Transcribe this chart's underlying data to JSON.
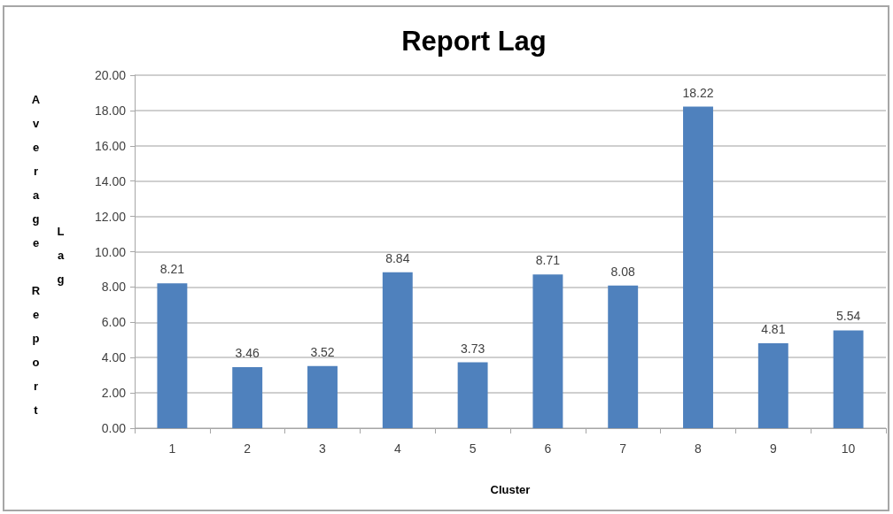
{
  "chart_data": {
    "type": "bar",
    "title": "Report Lag",
    "xlabel": "Cluster",
    "ylabel": "Average Report Lag",
    "categories": [
      "1",
      "2",
      "3",
      "4",
      "5",
      "6",
      "7",
      "8",
      "9",
      "10"
    ],
    "values": [
      8.21,
      3.46,
      3.52,
      8.84,
      3.73,
      8.71,
      8.08,
      18.22,
      4.81,
      5.54
    ],
    "color": "#4f81bd",
    "ylim": [
      0,
      20
    ],
    "yticks": [
      {
        "value": 0,
        "label": "0.00"
      },
      {
        "value": 2,
        "label": "2.00"
      },
      {
        "value": 4,
        "label": "4.00"
      },
      {
        "value": 6,
        "label": "6.00"
      },
      {
        "value": 8,
        "label": "8.00"
      },
      {
        "value": 10,
        "label": "10.00"
      },
      {
        "value": 12,
        "label": "12.00"
      },
      {
        "value": 14,
        "label": "14.00"
      },
      {
        "value": 16,
        "label": "16.00"
      },
      {
        "value": 18,
        "label": "18.00"
      },
      {
        "value": 20,
        "label": "20.00"
      }
    ],
    "grid": "y",
    "data_labels": true
  }
}
